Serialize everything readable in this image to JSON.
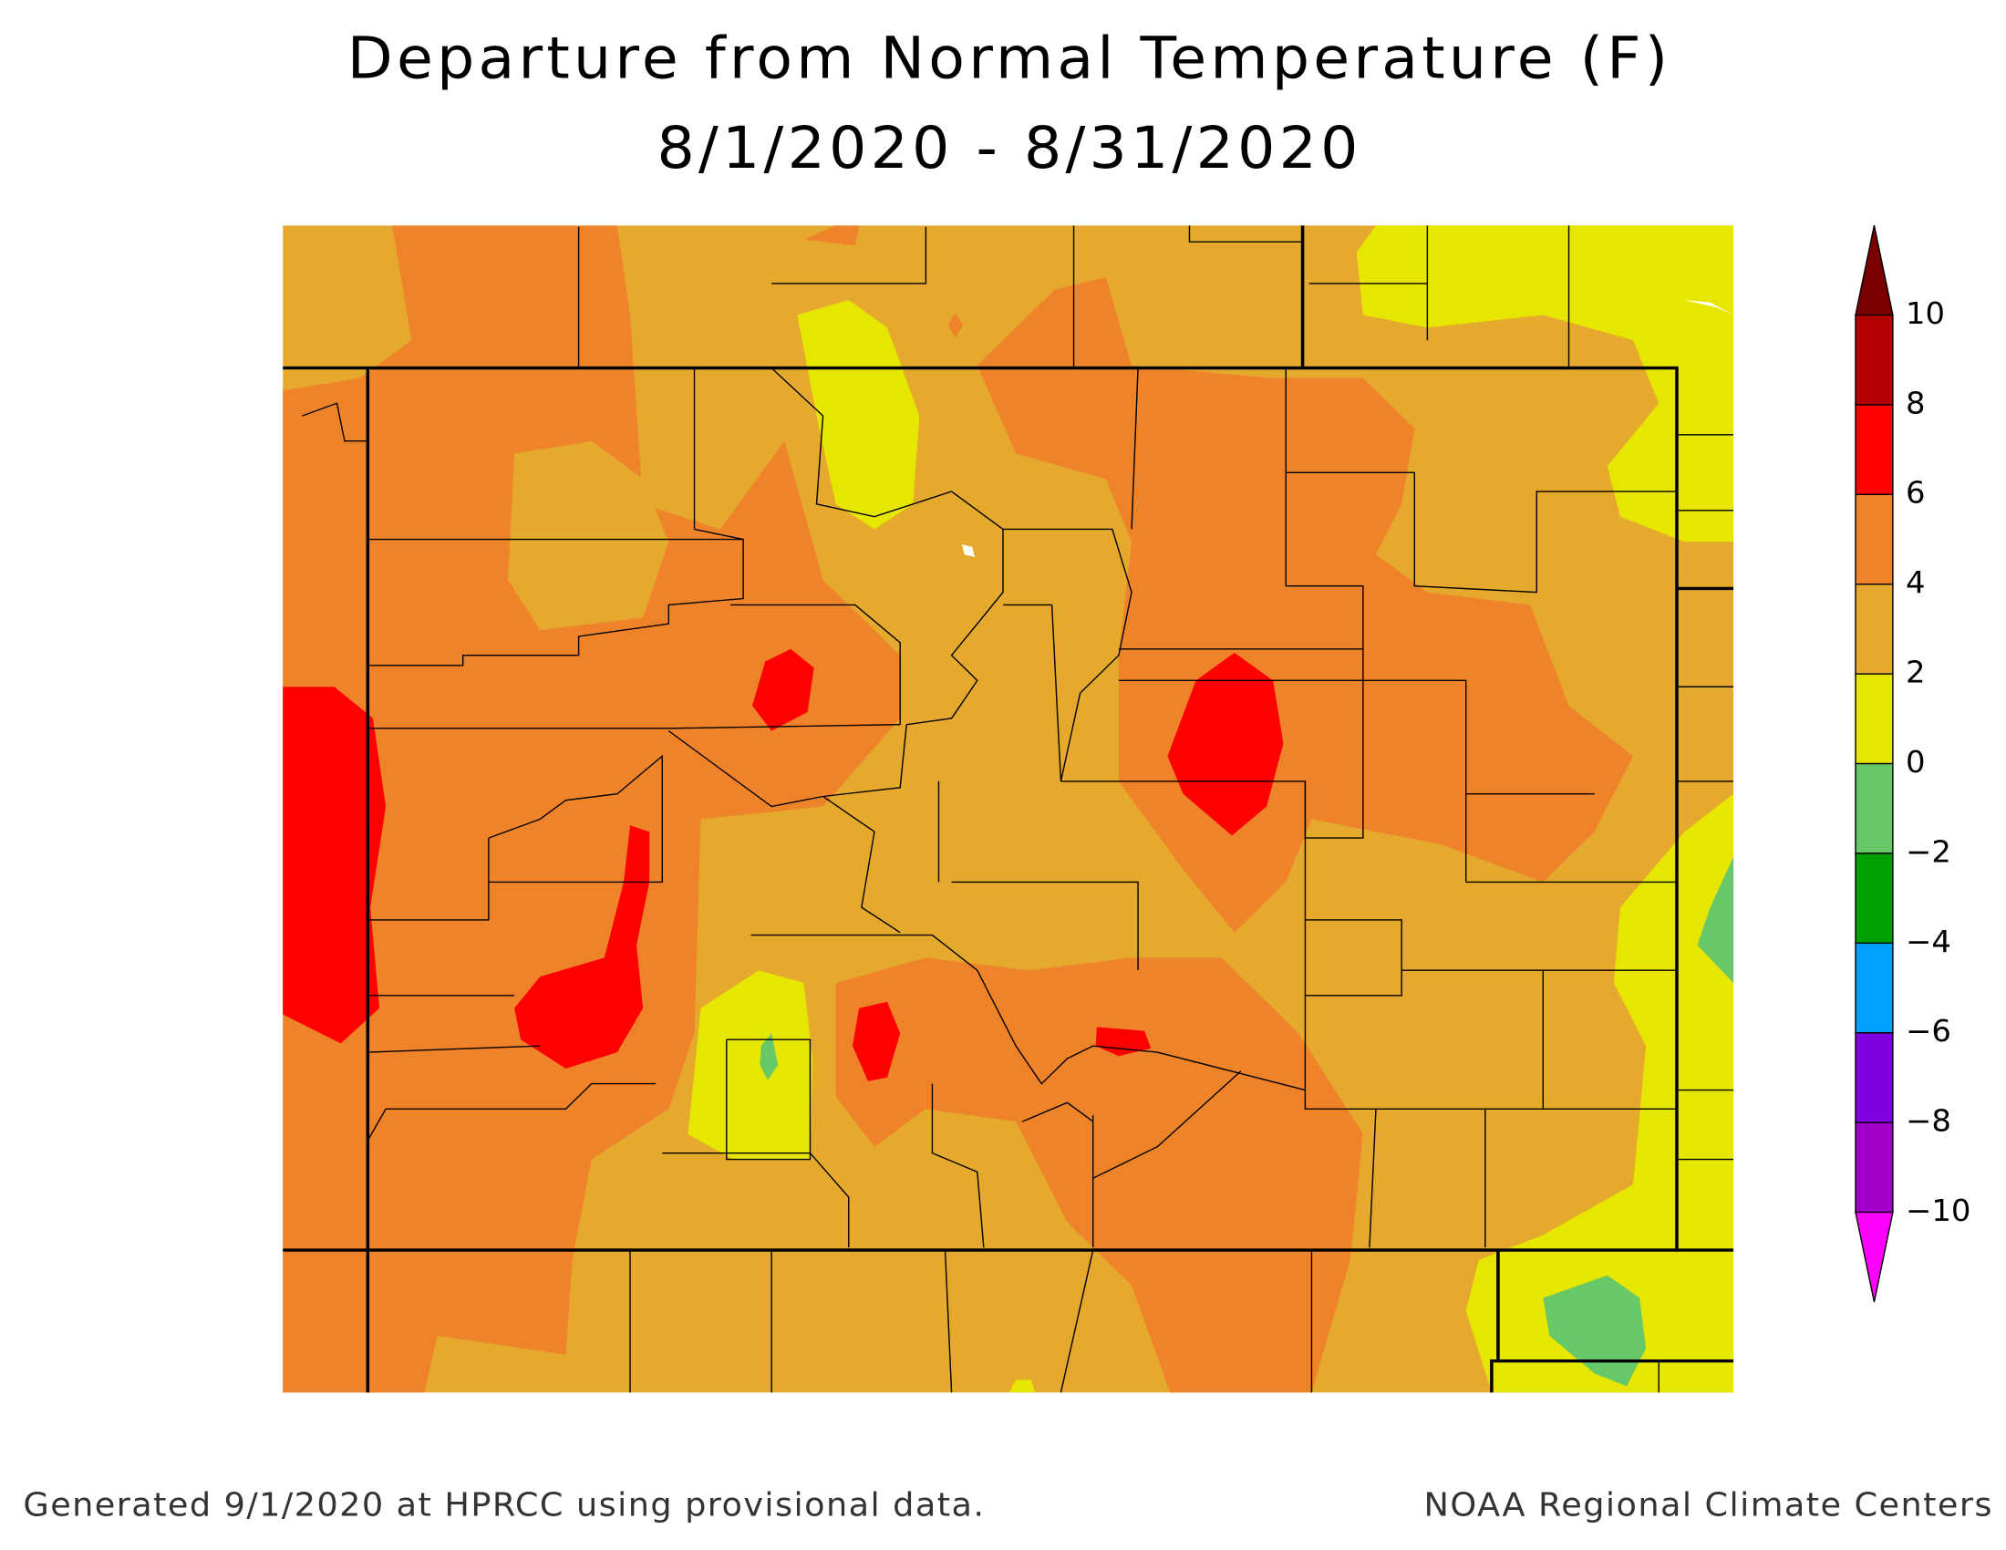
{
  "header": {
    "title": "Departure from Normal Temperature (F)",
    "subtitle": "8/1/2020 - 8/31/2020"
  },
  "legend": {
    "labels": [
      "10",
      "8",
      "6",
      "4",
      "2",
      "0",
      "−2",
      "−4",
      "−6",
      "−8",
      "−10"
    ],
    "colors": [
      "#7a0000",
      "#b30000",
      "#ff0000",
      "#ef832a",
      "#e5a92e",
      "#e6e600",
      "#66c866",
      "#00a000",
      "#00a0ff",
      "#8000e0",
      "#a000c8",
      "#ff00ff"
    ]
  },
  "footer": {
    "left": "Generated 9/1/2020 at HPRCC using provisional data.",
    "right": "NOAA Regional Climate Centers"
  }
}
